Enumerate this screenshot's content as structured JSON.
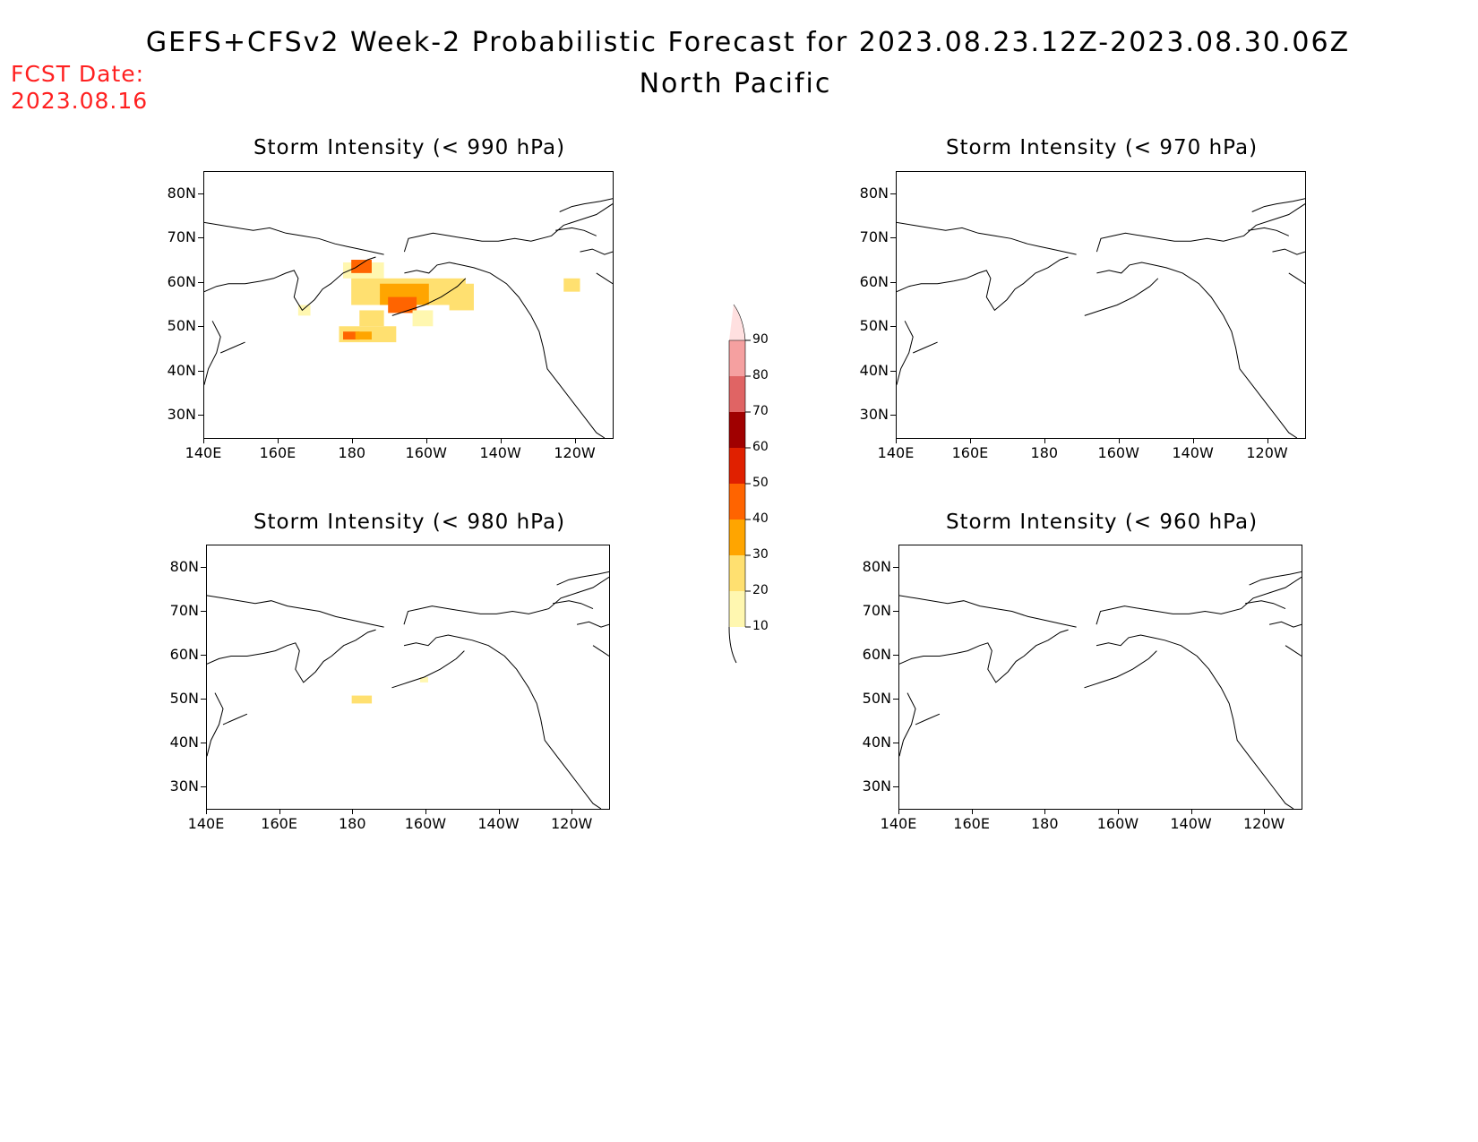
{
  "header": {
    "title": "GEFS+CFSv2 Week-2 Probabilistic Forecast for 2023.08.23.12Z-2023.08.30.06Z",
    "region": "North Pacific",
    "fcst_label": "FCST Date:",
    "fcst_date": "2023.08.16"
  },
  "colors": {
    "fcst_text": "#ff2020",
    "scale": [
      "#fff7b0",
      "#ffe070",
      "#ffa500",
      "#ff6400",
      "#e02000",
      "#a00000",
      "#e06464",
      "#f5a0a0",
      "#ffe0e0"
    ]
  },
  "colorbar": {
    "labels": [
      "10",
      "20",
      "30",
      "40",
      "50",
      "60",
      "70",
      "80",
      "90"
    ]
  },
  "axes": {
    "lat_labels": [
      "80N",
      "70N",
      "60N",
      "50N",
      "40N",
      "30N"
    ],
    "lon_labels": [
      "140E",
      "160E",
      "180",
      "160W",
      "140W",
      "120W"
    ]
  },
  "panels": [
    {
      "id": "p990",
      "title": "Storm Intensity (< 990 hPa)"
    },
    {
      "id": "p970",
      "title": "Storm Intensity (< 970 hPa)"
    },
    {
      "id": "p980",
      "title": "Storm Intensity (< 980 hPa)"
    },
    {
      "id": "p960",
      "title": "Storm Intensity (< 960 hPa)"
    }
  ]
}
